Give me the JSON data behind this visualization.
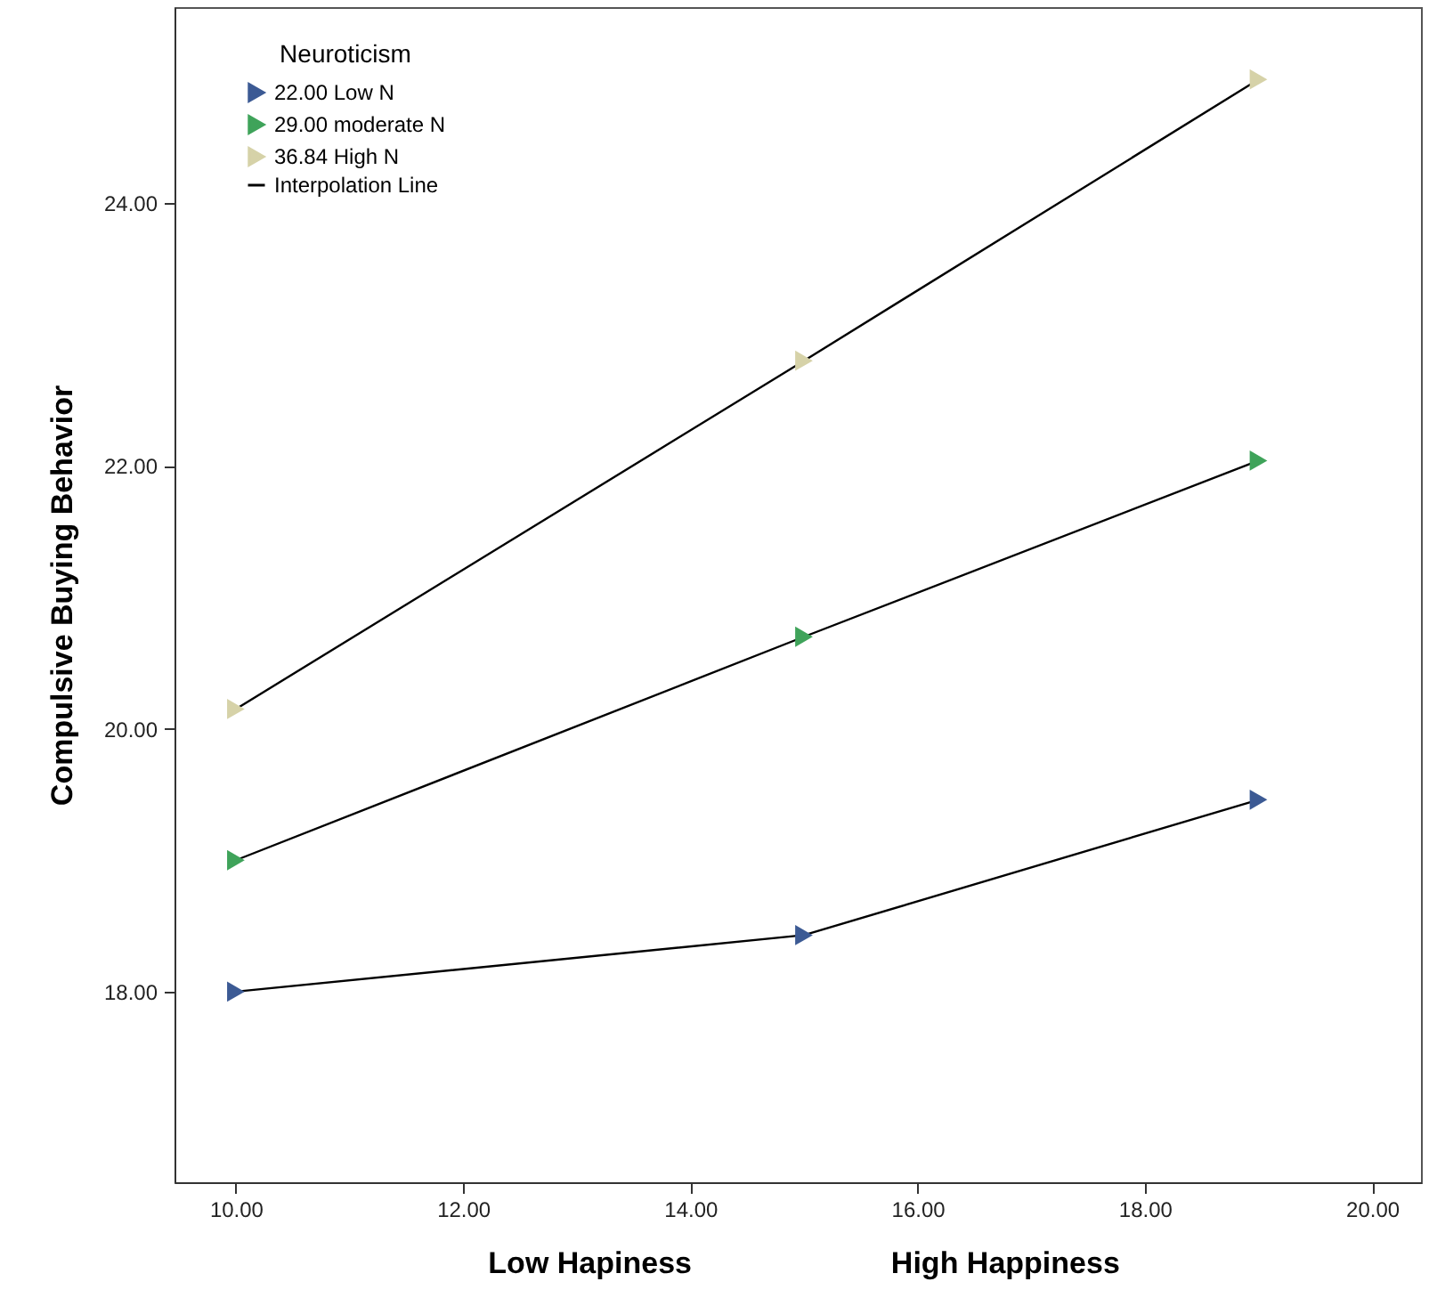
{
  "chart_data": {
    "type": "line",
    "ylabel": "Compulsive Buying Behavior",
    "legend_title": "Neuroticism",
    "x": [
      10,
      15,
      19
    ],
    "series": [
      {
        "name": "22.00 Low N",
        "type": "scatter",
        "marker": "triangle",
        "color": "#3c5a94",
        "values": [
          18.0,
          18.43,
          19.46
        ]
      },
      {
        "name": "29.00 moderate N",
        "type": "scatter",
        "marker": "triangle",
        "color": "#3fa35a",
        "values": [
          19.0,
          20.7,
          22.04
        ]
      },
      {
        "name": "36.84 High N",
        "type": "scatter",
        "marker": "triangle",
        "color": "#d6d2a8",
        "values": [
          20.15,
          22.8,
          24.94
        ]
      },
      {
        "name": "Interpolation Line",
        "color": "#000000",
        "values": [
          18.0,
          18.43,
          19.46
        ]
      },
      {
        "color": "#000000",
        "values": [
          19.0,
          20.7,
          22.04
        ]
      },
      {
        "color": "#000000",
        "values": [
          20.15,
          22.8,
          24.94
        ]
      }
    ],
    "annotations": [
      "Low Hapiness",
      "High Happiness"
    ],
    "xlim": [
      9.46,
      20.43
    ],
    "ylim": [
      16.55,
      25.49
    ],
    "xticks": [
      {
        "value": 10,
        "label": "10.00"
      },
      {
        "value": 12,
        "label": "12.00"
      },
      {
        "value": 14,
        "label": "14.00"
      },
      {
        "value": 16,
        "label": "16.00"
      },
      {
        "value": 18,
        "label": "18.00"
      },
      {
        "value": 20,
        "label": "20.00"
      }
    ],
    "yticks": [
      {
        "value": 18,
        "label": "18.00"
      },
      {
        "value": 20,
        "label": "20.00"
      },
      {
        "value": 22,
        "label": "22.00"
      },
      {
        "value": 24,
        "label": "24.00"
      }
    ],
    "grid": false,
    "legend": "top left",
    "line_style": "solid"
  }
}
